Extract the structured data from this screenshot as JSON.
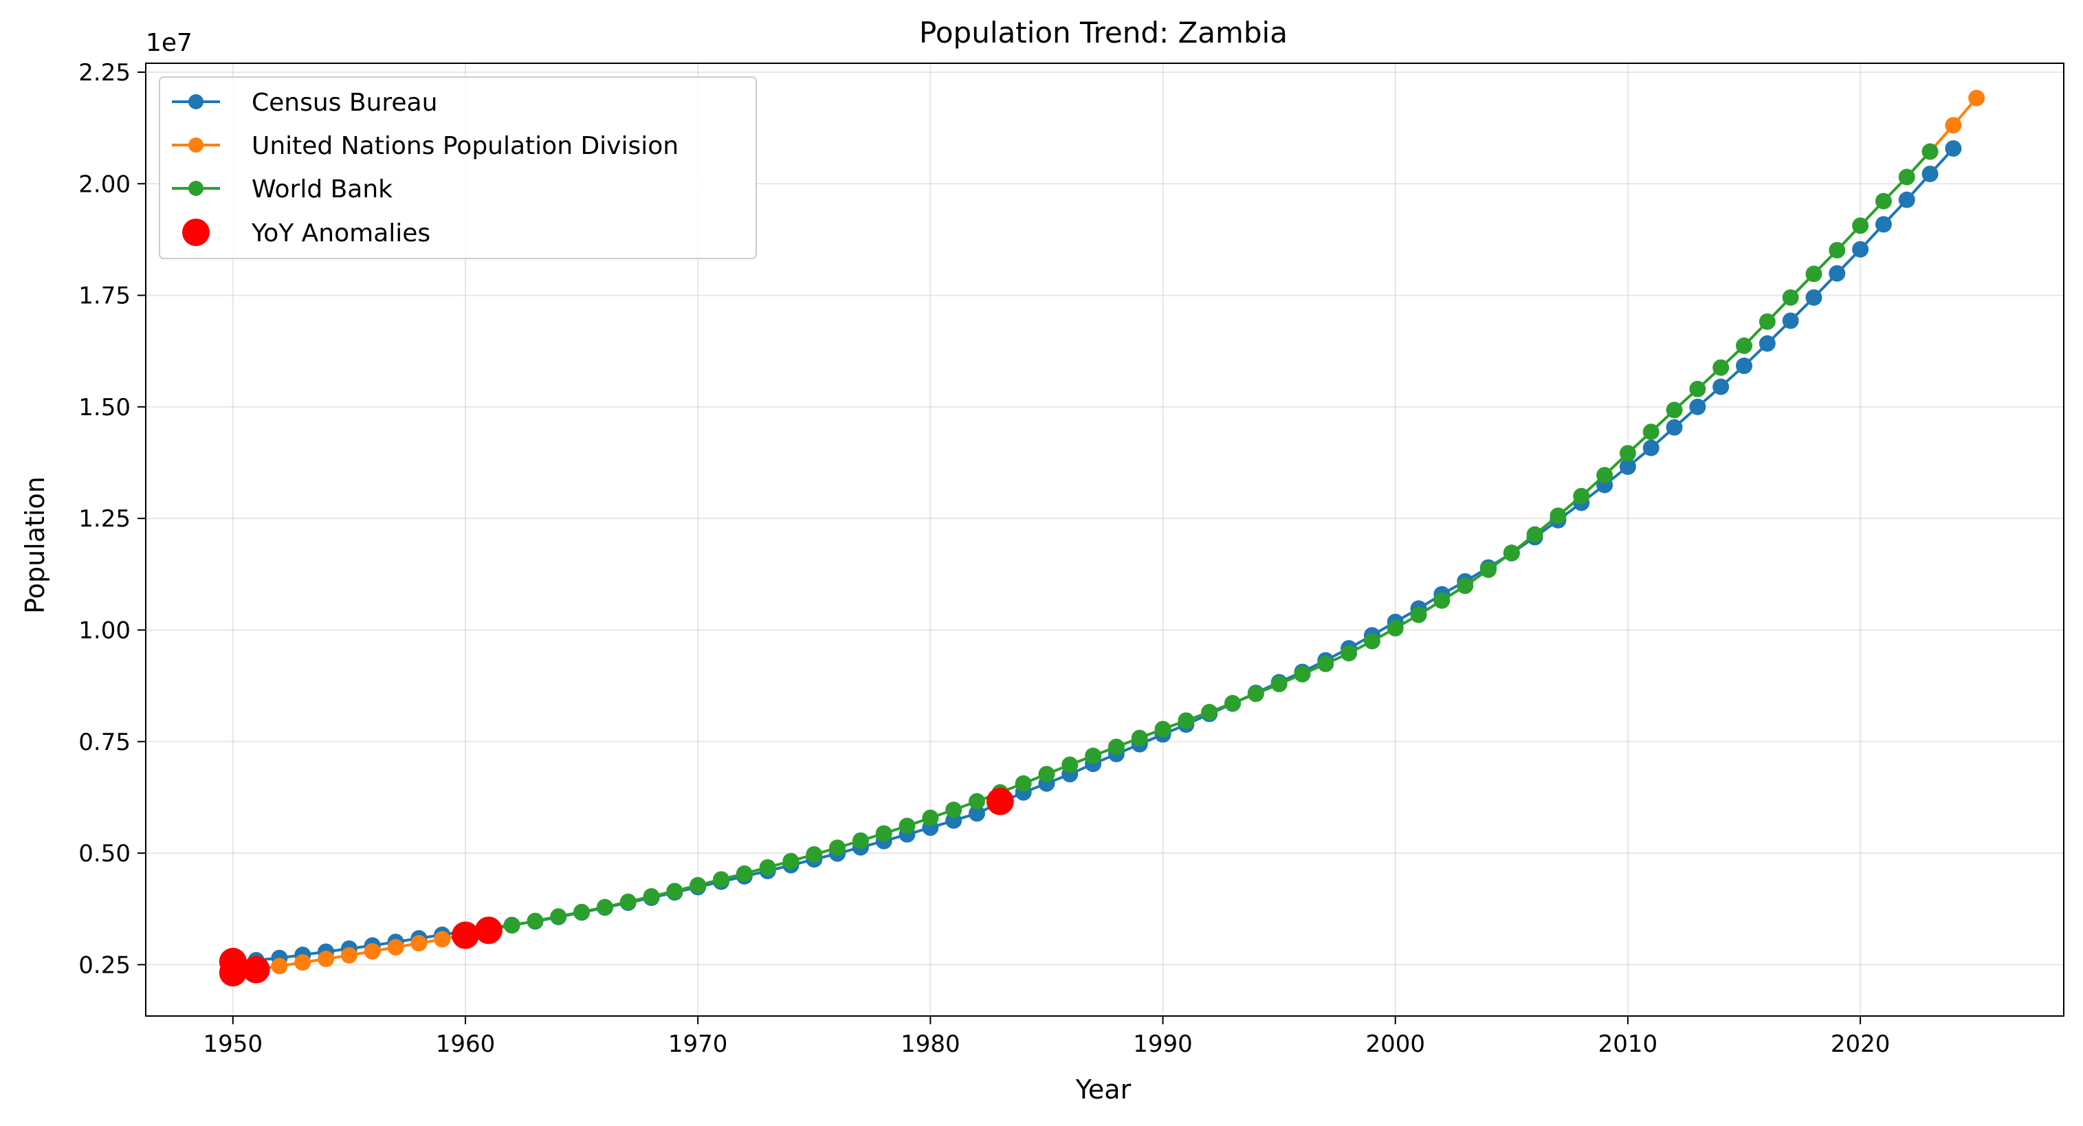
{
  "chart_data": {
    "type": "line",
    "title": "Population Trend: Zambia",
    "xlabel": "Year",
    "ylabel": "Population",
    "y_offset_label": "1e7",
    "xlim": [
      1946.25,
      2028.75
    ],
    "ylim": [
      1350000,
      22700000
    ],
    "x_ticks": [
      1950,
      1960,
      1970,
      1980,
      1990,
      2000,
      2010,
      2020
    ],
    "x_tick_labels": [
      "1950",
      "1960",
      "1970",
      "1980",
      "1990",
      "2000",
      "2010",
      "2020"
    ],
    "y_ticks": [
      2500000,
      5000000,
      7500000,
      10000000,
      12500000,
      15000000,
      17500000,
      20000000,
      22500000
    ],
    "y_tick_labels": [
      "0.25",
      "0.50",
      "0.75",
      "1.00",
      "1.25",
      "1.50",
      "1.75",
      "2.00",
      "2.25"
    ],
    "grid": true,
    "legend_position": "top-left",
    "series": [
      {
        "name": "Census Bureau",
        "color": "#1f77b4",
        "marker": "circle",
        "x": [
          1950,
          1951,
          1952,
          1953,
          1954,
          1955,
          1956,
          1957,
          1958,
          1959,
          1960,
          1961,
          1962,
          1963,
          1964,
          1965,
          1966,
          1967,
          1968,
          1969,
          1970,
          1971,
          1972,
          1973,
          1974,
          1975,
          1976,
          1977,
          1978,
          1979,
          1980,
          1981,
          1982,
          1983,
          1984,
          1985,
          1986,
          1987,
          1988,
          1989,
          1990,
          1991,
          1992,
          1993,
          1994,
          1995,
          1996,
          1997,
          1998,
          1999,
          2000,
          2001,
          2002,
          2003,
          2004,
          2005,
          2006,
          2007,
          2008,
          2009,
          2010,
          2011,
          2012,
          2013,
          2014,
          2015,
          2016,
          2017,
          2018,
          2019,
          2020,
          2021,
          2022,
          2023,
          2024
        ],
        "y": [
          2570000,
          2600000,
          2650000,
          2720000,
          2790000,
          2860000,
          2930000,
          3010000,
          3090000,
          3170000,
          3250000,
          3320000,
          3390000,
          3470000,
          3570000,
          3670000,
          3780000,
          3890000,
          4000000,
          4120000,
          4240000,
          4360000,
          4480000,
          4600000,
          4730000,
          4860000,
          4990000,
          5130000,
          5270000,
          5420000,
          5570000,
          5730000,
          5890000,
          6130000,
          6360000,
          6560000,
          6770000,
          7000000,
          7220000,
          7440000,
          7660000,
          7880000,
          8120000,
          8350000,
          8590000,
          8830000,
          9060000,
          9320000,
          9590000,
          9880000,
          10180000,
          10480000,
          10800000,
          11090000,
          11400000,
          11720000,
          12080000,
          12460000,
          12850000,
          13250000,
          13660000,
          14080000,
          14540000,
          15000000,
          15450000,
          15920000,
          16420000,
          16930000,
          17450000,
          17990000,
          18530000,
          19090000,
          19640000,
          20220000,
          20790000
        ]
      },
      {
        "name": "United Nations Population Division",
        "color": "#ff7f0e",
        "marker": "circle",
        "x": [
          1950,
          1951,
          1952,
          1953,
          1954,
          1955,
          1956,
          1957,
          1958,
          1959,
          1960,
          1961,
          2023,
          2024,
          2025
        ],
        "y": [
          2320000,
          2390000,
          2470000,
          2550000,
          2630000,
          2710000,
          2800000,
          2890000,
          2980000,
          3070000,
          3160000,
          3260000,
          20720000,
          21310000,
          21920000
        ]
      },
      {
        "name": "World Bank",
        "color": "#2ca02c",
        "marker": "circle",
        "x": [
          1961,
          1962,
          1963,
          1964,
          1965,
          1966,
          1967,
          1968,
          1969,
          1970,
          1971,
          1972,
          1973,
          1974,
          1975,
          1976,
          1977,
          1978,
          1979,
          1980,
          1981,
          1982,
          1983,
          1984,
          1985,
          1986,
          1987,
          1988,
          1989,
          1990,
          1991,
          1992,
          1993,
          1994,
          1995,
          1996,
          1997,
          1998,
          1999,
          2000,
          2001,
          2002,
          2003,
          2004,
          2005,
          2006,
          2007,
          2008,
          2009,
          2010,
          2011,
          2012,
          2013,
          2014,
          2015,
          2016,
          2017,
          2018,
          2019,
          2020,
          2021,
          2022,
          2023
        ],
        "y": [
          3280000,
          3380000,
          3480000,
          3580000,
          3680000,
          3790000,
          3910000,
          4030000,
          4150000,
          4280000,
          4410000,
          4540000,
          4680000,
          4820000,
          4970000,
          5120000,
          5280000,
          5440000,
          5610000,
          5790000,
          5970000,
          6160000,
          6360000,
          6560000,
          6770000,
          6980000,
          7180000,
          7380000,
          7580000,
          7780000,
          7970000,
          8160000,
          8360000,
          8570000,
          8790000,
          9010000,
          9240000,
          9480000,
          9750000,
          10040000,
          10340000,
          10660000,
          10990000,
          11350000,
          11730000,
          12140000,
          12560000,
          13000000,
          13470000,
          13960000,
          14440000,
          14930000,
          15400000,
          15880000,
          16370000,
          16910000,
          17450000,
          17980000,
          18510000,
          19060000,
          19610000,
          20150000,
          20720000
        ]
      },
      {
        "name": "YoY Anomalies",
        "color": "#ff0000",
        "marker": "circle",
        "style": "scatter",
        "x": [
          1950,
          1950,
          1951,
          1960,
          1961,
          1983
        ],
        "y": [
          2570000,
          2320000,
          2390000,
          3160000,
          3270000,
          6160000
        ]
      }
    ]
  }
}
